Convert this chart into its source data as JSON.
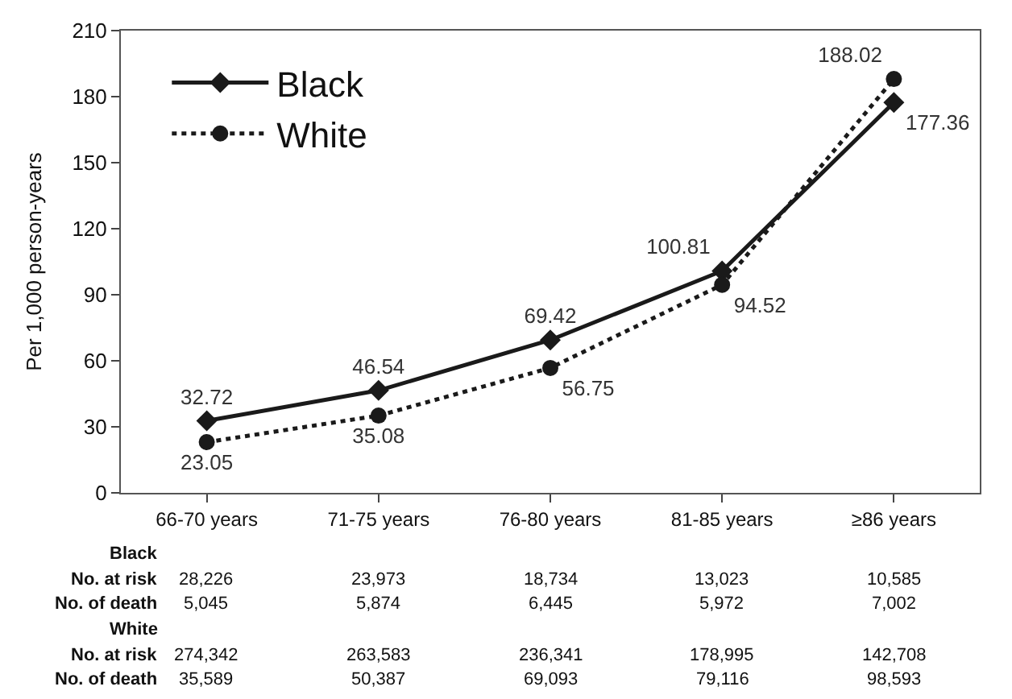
{
  "chart_data": {
    "type": "line",
    "ylabel": "Per 1,000 person-years",
    "categories": [
      "66-70 years",
      "71-75 years",
      "76-80 years",
      "81-85 years",
      "≥86 years"
    ],
    "series": [
      {
        "name": "Black",
        "color": "#1a1a1a",
        "marker": "diamond",
        "line_style": "solid",
        "values": [
          32.72,
          46.54,
          69.42,
          100.81,
          177.36
        ],
        "value_labels": [
          "32.72",
          "46.54",
          "69.42",
          "100.81",
          "177.36"
        ]
      },
      {
        "name": "White",
        "color": "#1a1a1a",
        "marker": "circle",
        "line_style": "dotted",
        "values": [
          23.05,
          35.08,
          56.75,
          94.52,
          188.02
        ],
        "value_labels": [
          "23.05",
          "35.08",
          "56.75",
          "94.52",
          "188.02"
        ]
      }
    ],
    "ylim": [
      0,
      210
    ],
    "yticks": [
      0,
      30,
      60,
      90,
      120,
      150,
      180,
      210
    ],
    "legend": "top left",
    "annotations": [
      "Black",
      "No. at risk 28,226 23,973 18,734 13,023 10,585",
      "No. of death 5,045 5,874 6,445 5,972 7,002",
      "White",
      "No. at risk 274,342 263,583 236,341 178,995 142,708",
      "No. of death 35,589 50,387 69,093 79,116 98,593"
    ]
  }
}
